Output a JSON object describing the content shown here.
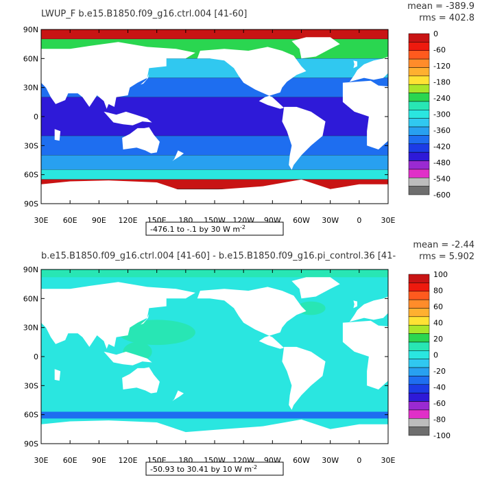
{
  "chart_data": [
    {
      "type": "heatmap",
      "title": "LWUP_F b.e15.B1850.f09_g16.ctrl.004 [41-60]",
      "stats": {
        "mean_label": "mean = -389.9",
        "rms_label": "rms = 402.8"
      },
      "subtitle_box": "-476.1 to -.1 by 30",
      "units": "W m",
      "units_exp": "-2",
      "xticks": [
        "30E",
        "60E",
        "90E",
        "120E",
        "150E",
        "180",
        "150W",
        "120W",
        "90W",
        "60W",
        "30W",
        "0",
        "30E"
      ],
      "yticks": [
        "90N",
        "60N",
        "30N",
        "0",
        "30S",
        "60S",
        "90S"
      ],
      "xlim": [
        30,
        390
      ],
      "ylim": [
        -90,
        90
      ],
      "colorbar": {
        "labels": [
          "0",
          "-60",
          "-120",
          "-180",
          "-240",
          "-300",
          "-360",
          "-420",
          "-480",
          "-540",
          "-600"
        ],
        "colors": [
          "#c81414",
          "#ee1a0e",
          "#ff5a1e",
          "#ff8c2a",
          "#ffb030",
          "#ffe234",
          "#a8e62a",
          "#2ad650",
          "#28e6b4",
          "#2ae6e0",
          "#30c8f0",
          "#28a0f0",
          "#1e6ef0",
          "#1c3ce6",
          "#2e1ad8",
          "#9a2ad2",
          "#e030c8",
          "#bcbcbc",
          "#6e6e6e"
        ]
      },
      "zonal_bands": [
        {
          "lat_range": [
            80,
            90
          ],
          "value": 0
        },
        {
          "lat_range": [
            60,
            80
          ],
          "value": -240
        },
        {
          "lat_range": [
            40,
            60
          ],
          "value": -330
        },
        {
          "lat_range": [
            20,
            40
          ],
          "value": -390
        },
        {
          "lat_range": [
            -20,
            20
          ],
          "value": -445
        },
        {
          "lat_range": [
            -40,
            -20
          ],
          "value": -410
        },
        {
          "lat_range": [
            -55,
            -40
          ],
          "value": -360
        },
        {
          "lat_range": [
            -65,
            -55
          ],
          "value": -300
        },
        {
          "lat_range": [
            -75,
            -65
          ],
          "value": -30
        }
      ]
    },
    {
      "type": "heatmap",
      "title": "b.e15.B1850.f09_g16.ctrl.004 [41-60] - b.e15.B1850.f09_g16.pi_control.36 [41-",
      "stats": {
        "mean_label": "mean = -2.44",
        "rms_label": "rms = 5.902"
      },
      "subtitle_box": "-50.93 to 30.41 by 10",
      "units": "W m",
      "units_exp": "-2",
      "xticks": [
        "30E",
        "60E",
        "90E",
        "120E",
        "150E",
        "180",
        "150W",
        "120W",
        "90W",
        "60W",
        "30W",
        "0",
        "30E"
      ],
      "yticks": [
        "90N",
        "60N",
        "30N",
        "0",
        "30S",
        "60S",
        "90S"
      ],
      "xlim": [
        30,
        390
      ],
      "ylim": [
        -90,
        90
      ],
      "colorbar": {
        "labels": [
          "100",
          "80",
          "60",
          "40",
          "20",
          "0",
          "-20",
          "-40",
          "-60",
          "-80",
          "-100"
        ],
        "colors": [
          "#c81414",
          "#ee1a0e",
          "#ff5a1e",
          "#ff8c2a",
          "#ffb030",
          "#ffe234",
          "#a8e62a",
          "#2ad650",
          "#28e6b4",
          "#2ae6e0",
          "#30c8f0",
          "#28a0f0",
          "#1e6ef0",
          "#1c3ce6",
          "#2e1ad8",
          "#9a2ad2",
          "#e030c8",
          "#bcbcbc",
          "#6e6e6e"
        ]
      },
      "background_value": -5,
      "features": [
        {
          "name": "arctic-green",
          "value": 15
        },
        {
          "name": "west-pacific-green",
          "value": 15
        },
        {
          "name": "north-atlantic-green",
          "value": 15
        },
        {
          "name": "southern-ocean-blue",
          "value": -30
        }
      ]
    }
  ]
}
